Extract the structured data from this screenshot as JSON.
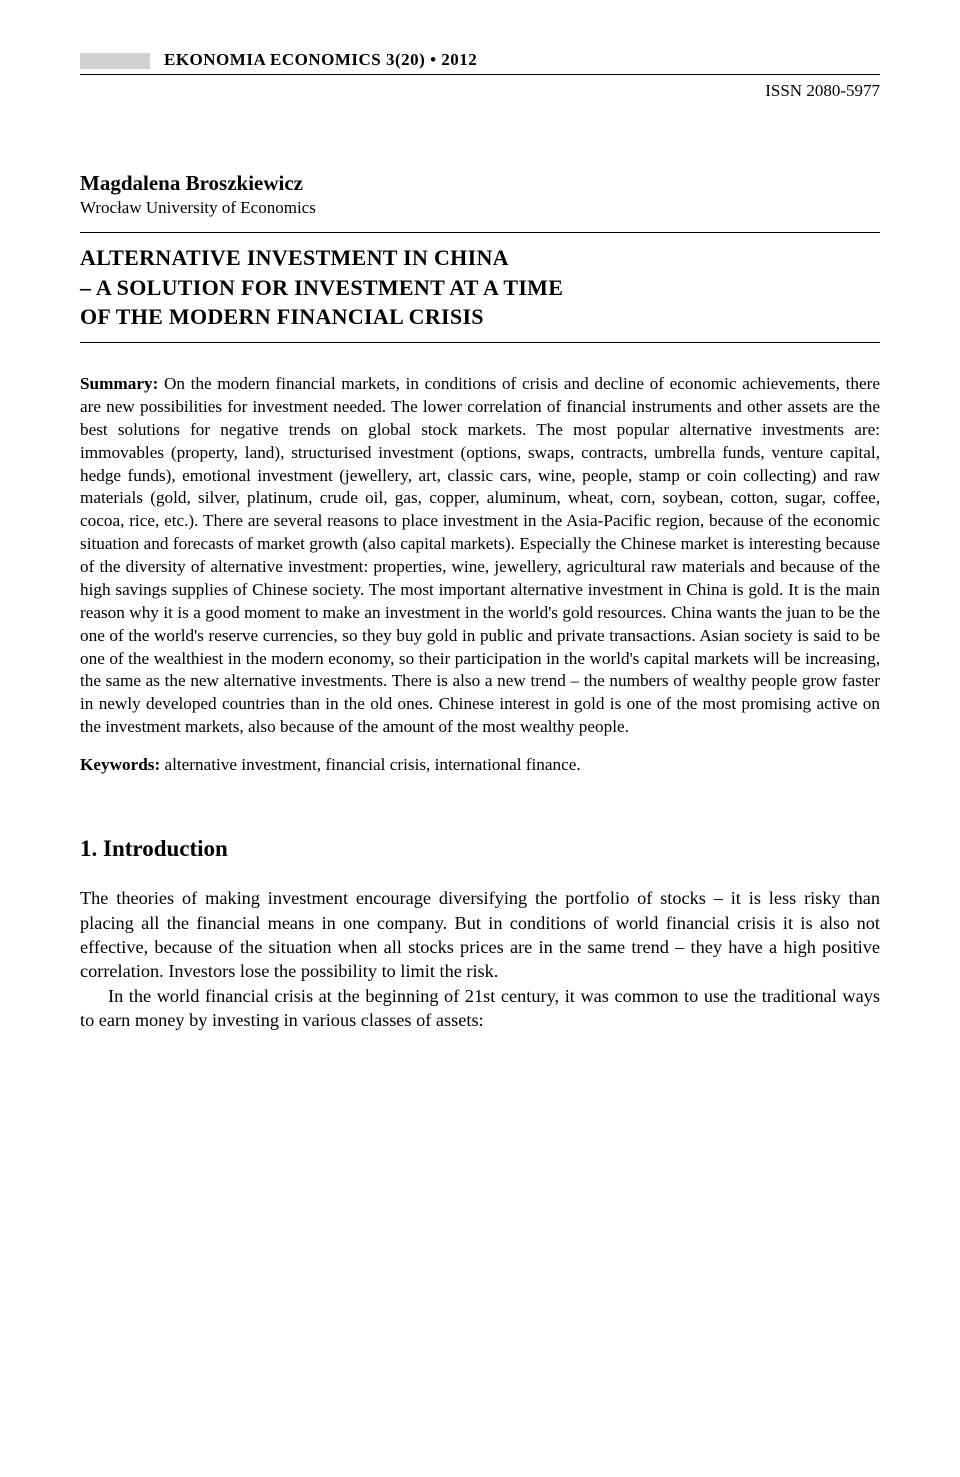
{
  "header": {
    "journal_title": "EKONOMIA  ECONOMICS  3(20) • 2012",
    "issn": "ISSN 2080-5977"
  },
  "author": {
    "name": "Magdalena Broszkiewicz",
    "affiliation": "Wrocław University of Economics"
  },
  "title": {
    "line1": "ALTERNATIVE INVESTMENT IN CHINA",
    "line2": "– A SOLUTION FOR INVESTMENT AT A TIME",
    "line3": "OF THE MODERN FINANCIAL CRISIS"
  },
  "summary": {
    "label": "Summary:",
    "text": " On the modern financial markets, in conditions of crisis and decline of economic achievements, there are new possibilities for investment needed. The lower correlation of financial instruments and other assets are the best solutions for negative trends on global stock markets. The most popular alternative investments are: immovables (property, land), structurised investment (options, swaps, contracts, umbrella funds, venture capital, hedge funds), emotional investment (jewellery, art, classic cars, wine, people, stamp or coin collecting) and raw materials (gold, silver, platinum, crude oil, gas, copper, aluminum, wheat, corn, soybean, cotton, sugar, coffee, cocoa, rice, etc.). There are several reasons to place investment in the Asia-Pacific region, because of the economic situation and forecasts of market growth (also capital markets). Especially the Chinese market is interesting because of the diversity of alternative investment: properties, wine, jewellery, agricultural raw materials and because of the high savings supplies of Chinese society. The most important alternative investment in China is gold. It is the main reason why it is a good moment to make an investment in the world's gold resources. China wants the juan to be the one of the world's reserve currencies, so they buy gold in public and private transactions. Asian society is said to be one of the wealthiest in the modern economy, so their participation in the world's capital markets will be increasing, the same as the new alternative investments. There is also a new trend – the numbers of wealthy people grow faster in newly developed countries than in the old ones. Chinese interest in gold is one of the most promising active on the investment markets, also because of the amount of the most wealthy people."
  },
  "keywords": {
    "label": "Keywords:",
    "text": " alternative investment, financial crisis, international finance."
  },
  "section1": {
    "heading": "1. Introduction",
    "p1": "The theories of making investment encourage diversifying the portfolio of stocks – it is less risky than placing all the financial means in one company. But in conditions of world financial crisis it is also not effective, because of the situation when all stocks prices are in the same trend – they have a high positive correlation. Investors lose the possibility to limit the risk.",
    "p2": "In the world financial crisis at the beginning of 21st century, it was common to use the traditional ways to earn money by investing in various classes of assets:"
  },
  "colors": {
    "text": "#000000",
    "background": "#ffffff",
    "gray_box": "#d0d0d0"
  }
}
